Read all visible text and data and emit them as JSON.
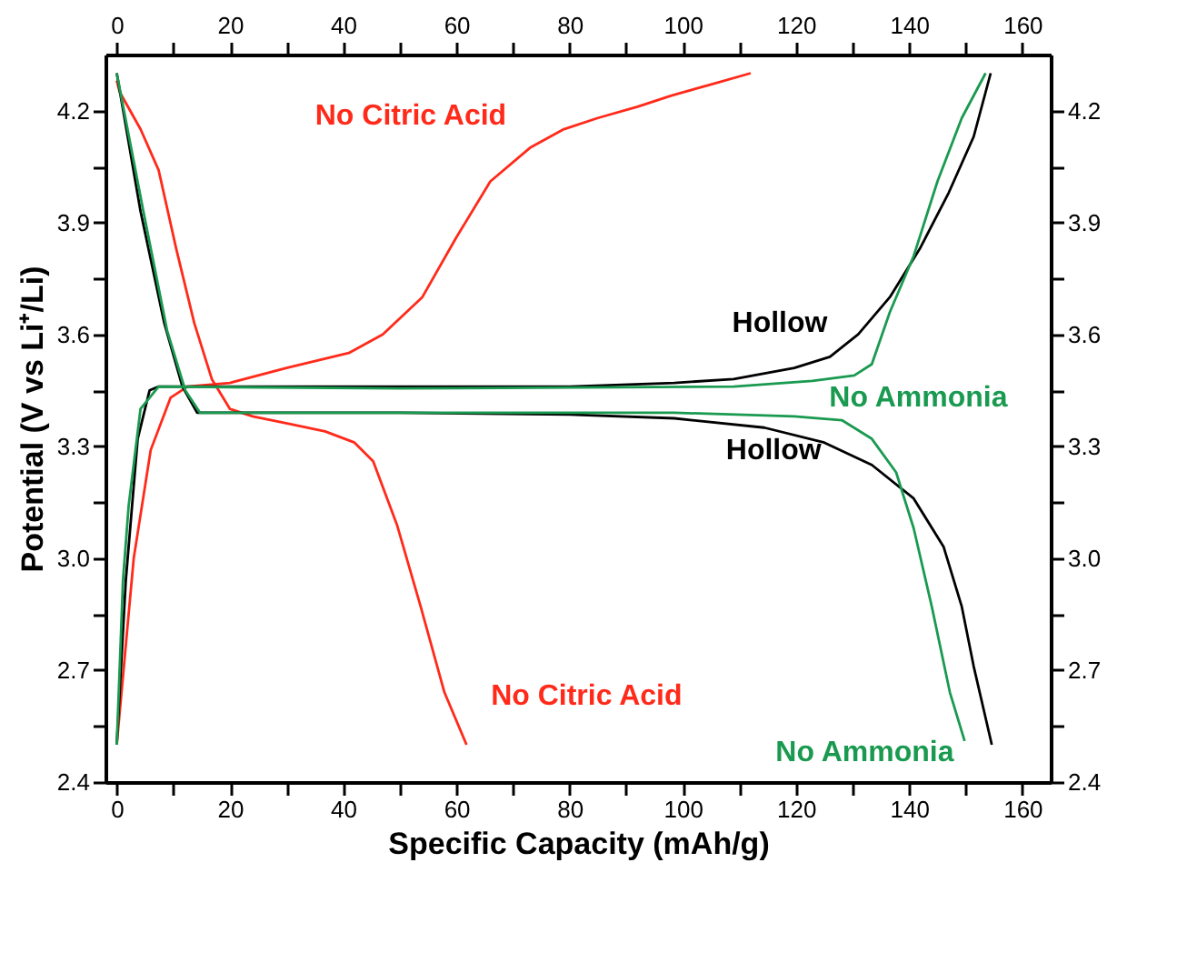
{
  "chart_data": {
    "type": "line",
    "xlabel": "Specific Capacity (mAh/g)",
    "ylabel": "Potential (V vs Li⁺/Li)",
    "xlim": [
      -2,
      165
    ],
    "ylim": [
      2.4,
      4.35
    ],
    "xticks": [
      0,
      {
        "value": 10,
        "label": null
      },
      20,
      {
        "value": 30,
        "label": null
      },
      40,
      {
        "value": 50,
        "label": null
      },
      60,
      {
        "value": 70,
        "label": null
      },
      80,
      {
        "value": 90,
        "label": null
      },
      100,
      {
        "value": 110,
        "label": null
      },
      120,
      {
        "value": 130,
        "label": null
      },
      140,
      {
        "value": 150,
        "label": null
      },
      160
    ],
    "yticks": [
      {
        "value": 2.4,
        "label": "2.4"
      },
      {
        "value": 2.55,
        "label": null
      },
      {
        "value": 2.7,
        "label": "2.7"
      },
      {
        "value": 2.85,
        "label": null
      },
      {
        "value": 3.0,
        "label": "3.0"
      },
      {
        "value": 3.15,
        "label": null
      },
      {
        "value": 3.3,
        "label": "3.3"
      },
      {
        "value": 3.45,
        "label": null
      },
      {
        "value": 3.6,
        "label": "3.6"
      },
      {
        "value": 3.75,
        "label": null
      },
      {
        "value": 3.9,
        "label": "3.9"
      },
      {
        "value": 4.05,
        "label": null
      },
      {
        "value": 4.2,
        "label": "4.2"
      }
    ],
    "x2lim": [
      -2,
      165
    ],
    "x2ticks": [
      0,
      {
        "value": 10,
        "label": null
      },
      20,
      {
        "value": 30,
        "label": null
      },
      40,
      {
        "value": 50,
        "label": null
      },
      60,
      {
        "value": 70,
        "label": null
      },
      80,
      {
        "value": 90,
        "label": null
      },
      100,
      {
        "value": 110,
        "label": null
      },
      120,
      {
        "value": 130,
        "label": null
      },
      140,
      {
        "value": 150,
        "label": null
      },
      160
    ],
    "y2lim": [
      2.4,
      4.35
    ],
    "y2ticks": [
      {
        "value": 2.4,
        "label": "2.4"
      },
      {
        "value": 2.55,
        "label": null
      },
      {
        "value": 2.7,
        "label": "2.7"
      },
      {
        "value": 2.85,
        "label": null
      },
      {
        "value": 3.0,
        "label": "3.0"
      },
      {
        "value": 3.15,
        "label": null
      },
      {
        "value": 3.3,
        "label": "3.3"
      },
      {
        "value": 3.45,
        "label": null
      },
      {
        "value": 3.6,
        "label": "3.6"
      },
      {
        "value": 3.75,
        "label": null
      },
      {
        "value": 3.9,
        "label": "3.9"
      },
      {
        "value": 4.05,
        "label": null
      },
      {
        "value": 4.2,
        "label": "4.2"
      }
    ],
    "grid": false,
    "legend": false,
    "marker": "none",
    "line_style": "solid",
    "series": [
      {
        "name": "No Citric Acid",
        "color": "#ff2a1a",
        "x": [
          0,
          3,
          6,
          9.5,
          12.5,
          20,
          30,
          41,
          47,
          54,
          60,
          66,
          73,
          79,
          85,
          92,
          98,
          105,
          112
        ],
        "values": [
          2.5,
          3.0,
          3.29,
          3.43,
          3.46,
          3.47,
          3.51,
          3.55,
          3.6,
          3.7,
          3.86,
          4.01,
          4.1,
          4.15,
          4.18,
          4.21,
          4.24,
          4.27,
          4.3
        ]
      },
      {
        "name": "No Citric Acid",
        "color": "#ff2a1a",
        "x": [
          0,
          0.5,
          4.2,
          7.4,
          10.5,
          13.7,
          16.8,
          20,
          24,
          30.5,
          36.8,
          42,
          45.3,
          49.5,
          53.7,
          57.9,
          61.8
        ],
        "values": [
          4.28,
          4.25,
          4.15,
          4.04,
          3.83,
          3.63,
          3.48,
          3.4,
          3.38,
          3.36,
          3.34,
          3.31,
          3.26,
          3.09,
          2.87,
          2.64,
          2.5
        ]
      },
      {
        "name": "Hollow",
        "color": "#000000",
        "x": [
          0,
          1.6,
          3.7,
          5.8,
          7.4,
          40,
          80,
          98.5,
          109,
          119.7,
          126,
          131,
          136.6,
          141.9,
          147,
          151.4,
          154.4
        ],
        "values": [
          2.5,
          2.94,
          3.32,
          3.45,
          3.46,
          3.46,
          3.46,
          3.47,
          3.48,
          3.51,
          3.54,
          3.6,
          3.7,
          3.83,
          3.98,
          4.13,
          4.3
        ]
      },
      {
        "name": "Hollow",
        "color": "#000000",
        "x": [
          0,
          4.2,
          8.4,
          11.6,
          14.2,
          20,
          50,
          80,
          98.5,
          114.4,
          125,
          133.4,
          140.8,
          146.1,
          149.3,
          151.4,
          154.6
        ],
        "values": [
          4.3,
          3.93,
          3.63,
          3.46,
          3.39,
          3.39,
          3.39,
          3.385,
          3.375,
          3.35,
          3.31,
          3.25,
          3.16,
          3.03,
          2.87,
          2.71,
          2.5
        ]
      },
      {
        "name": "No Ammonia",
        "color": "#1a9a50",
        "x": [
          0,
          1.1,
          2.1,
          4.2,
          7.4,
          50,
          109,
          122.9,
          130.3,
          133.4,
          136.6,
          140.8,
          145,
          149.3,
          153.5
        ],
        "values": [
          2.5,
          2.94,
          3.14,
          3.4,
          3.46,
          3.455,
          3.46,
          3.475,
          3.49,
          3.52,
          3.66,
          3.81,
          4.01,
          4.18,
          4.3
        ]
      },
      {
        "name": "No Ammonia",
        "color": "#1a9a50",
        "x": [
          0,
          4.7,
          8.9,
          12.1,
          14.7,
          20,
          60,
          98.5,
          119.7,
          128.1,
          133.4,
          137.7,
          140.8,
          144,
          147.2,
          149.8
        ],
        "values": [
          4.3,
          3.93,
          3.61,
          3.45,
          3.39,
          3.39,
          3.39,
          3.39,
          3.38,
          3.37,
          3.32,
          3.23,
          3.08,
          2.87,
          2.64,
          2.51
        ]
      }
    ]
  }
}
